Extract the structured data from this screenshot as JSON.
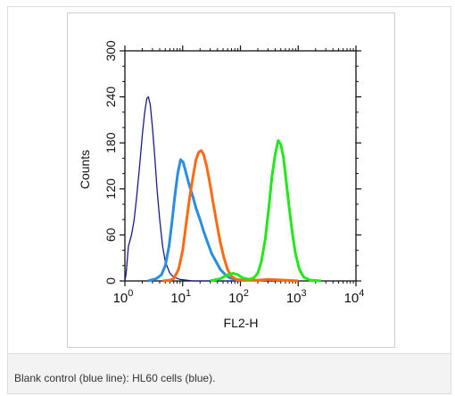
{
  "caption": "Blank control (blue line): HL60 cells (blue).",
  "chart_data": {
    "type": "line",
    "xlabel": "FL2-H",
    "ylabel": "Counts",
    "xscale": "log",
    "xlim": [
      1,
      10000
    ],
    "ylim": [
      0,
      300
    ],
    "x_ticks": [
      {
        "base": "10",
        "exp": "0",
        "value": 1
      },
      {
        "base": "10",
        "exp": "1",
        "value": 10
      },
      {
        "base": "10",
        "exp": "2",
        "value": 100
      },
      {
        "base": "10",
        "exp": "3",
        "value": 1000
      },
      {
        "base": "10",
        "exp": "4",
        "value": 10000
      }
    ],
    "y_ticks": [
      "0",
      "60",
      "120",
      "180",
      "240",
      "300"
    ],
    "legend": "none",
    "grid": false,
    "series": [
      {
        "color": "#1a1a8c",
        "points": [
          [
            1,
            0
          ],
          [
            1.05,
            10
          ],
          [
            1.15,
            45
          ],
          [
            1.3,
            60
          ],
          [
            1.45,
            80
          ],
          [
            1.6,
            110
          ],
          [
            1.8,
            150
          ],
          [
            2.0,
            190
          ],
          [
            2.2,
            220
          ],
          [
            2.4,
            238
          ],
          [
            2.55,
            240
          ],
          [
            2.75,
            230
          ],
          [
            3.0,
            200
          ],
          [
            3.3,
            160
          ],
          [
            3.6,
            120
          ],
          [
            4.0,
            80
          ],
          [
            4.5,
            45
          ],
          [
            5.0,
            25
          ],
          [
            6.0,
            10
          ],
          [
            7.0,
            5
          ],
          [
            9.0,
            2
          ],
          [
            15,
            0
          ],
          [
            100,
            0
          ]
        ]
      },
      {
        "color": "#2a8ee0",
        "points": [
          [
            2.5,
            0
          ],
          [
            3.5,
            3
          ],
          [
            4.3,
            8
          ],
          [
            5.0,
            20
          ],
          [
            5.8,
            45
          ],
          [
            6.5,
            75
          ],
          [
            7.3,
            110
          ],
          [
            8.2,
            140
          ],
          [
            9.2,
            158
          ],
          [
            10.2,
            155
          ],
          [
            11.5,
            140
          ],
          [
            13,
            125
          ],
          [
            15,
            110
          ],
          [
            17,
            95
          ],
          [
            20,
            80
          ],
          [
            23,
            65
          ],
          [
            27,
            50
          ],
          [
            32,
            35
          ],
          [
            38,
            25
          ],
          [
            45,
            15
          ],
          [
            55,
            8
          ],
          [
            65,
            4
          ],
          [
            80,
            2
          ],
          [
            100,
            0
          ]
        ]
      },
      {
        "color": "#ff6a10",
        "points": [
          [
            4.5,
            0
          ],
          [
            6,
            1
          ],
          [
            7,
            3
          ],
          [
            8.5,
            15
          ],
          [
            10,
            40
          ],
          [
            11.5,
            75
          ],
          [
            13,
            105
          ],
          [
            15,
            135
          ],
          [
            17,
            158
          ],
          [
            19,
            168
          ],
          [
            21,
            170
          ],
          [
            23,
            165
          ],
          [
            26,
            150
          ],
          [
            30,
            125
          ],
          [
            34,
            100
          ],
          [
            39,
            75
          ],
          [
            45,
            50
          ],
          [
            52,
            30
          ],
          [
            60,
            15
          ],
          [
            70,
            6
          ],
          [
            85,
            2
          ],
          [
            110,
            1
          ],
          [
            200,
            1
          ],
          [
            300,
            2
          ],
          [
            600,
            1
          ],
          [
            1000,
            0
          ]
        ]
      },
      {
        "color": "#22e81a",
        "points": [
          [
            30,
            0
          ],
          [
            45,
            3
          ],
          [
            60,
            8
          ],
          [
            75,
            10
          ],
          [
            90,
            8
          ],
          [
            110,
            4
          ],
          [
            140,
            2
          ],
          [
            170,
            4
          ],
          [
            200,
            10
          ],
          [
            230,
            25
          ],
          [
            270,
            55
          ],
          [
            310,
            95
          ],
          [
            350,
            135
          ],
          [
            400,
            165
          ],
          [
            450,
            183
          ],
          [
            500,
            178
          ],
          [
            560,
            160
          ],
          [
            620,
            130
          ],
          [
            700,
            95
          ],
          [
            800,
            60
          ],
          [
            900,
            35
          ],
          [
            1050,
            15
          ],
          [
            1250,
            5
          ],
          [
            1600,
            1
          ],
          [
            2500,
            0
          ]
        ]
      }
    ]
  }
}
